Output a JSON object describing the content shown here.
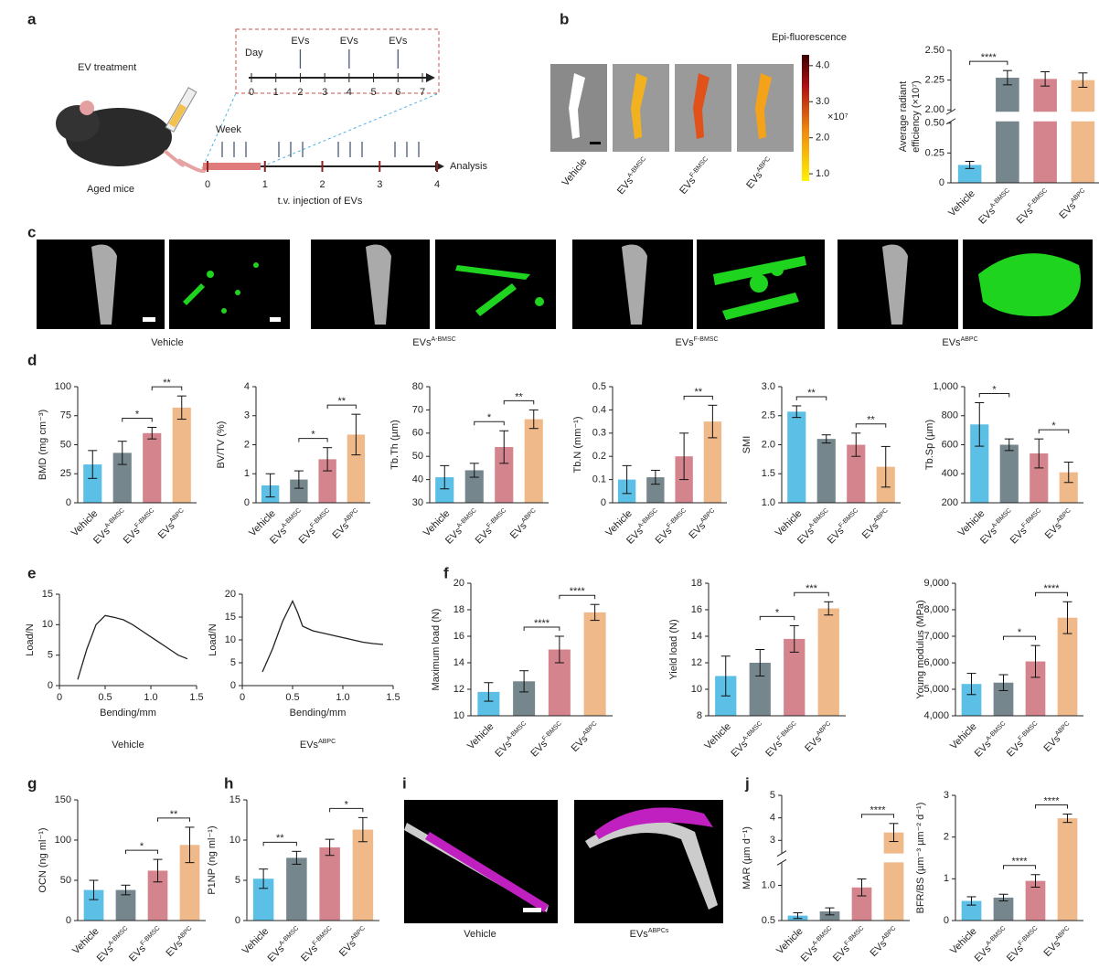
{
  "figure": {
    "panel_letters": [
      "a",
      "b",
      "c",
      "d",
      "e",
      "f",
      "g",
      "h",
      "i",
      "j"
    ],
    "a": {
      "title": "EV treatment",
      "mouse_label": "Aged mice",
      "day_label": "Day",
      "days": [
        0,
        1,
        2,
        3,
        4,
        5,
        6,
        7
      ],
      "ev_marks": [
        "EVs",
        "EVs",
        "EVs"
      ],
      "week_label": "Week",
      "weeks": [
        0,
        1,
        2,
        3,
        4
      ],
      "analysis": "Analysis",
      "injection": "t.v. injection of EVs"
    },
    "b": {
      "colorbar_title": "Epi-fluorescence",
      "colorbar_lim": [
        0.8,
        4.3
      ],
      "colorbar_ticks": [
        {
          "value": 1,
          "label": "1.0"
        },
        {
          "value": 2,
          "label": "2.0"
        },
        {
          "value": 3,
          "label": "3.0"
        },
        {
          "value": 4,
          "label": "4.0"
        }
      ],
      "colorbar_exponent": "×10⁷",
      "images": [
        {
          "label": "Vehicle"
        },
        {
          "label": "EVs",
          "sup": "A-BMSC"
        },
        {
          "label": "EVs",
          "sup": "F-BMSC"
        },
        {
          "label": "EVs",
          "sup": "ABPC"
        }
      ]
    },
    "c": {
      "labels": [
        {
          "label": "Vehicle"
        },
        {
          "label": "EVs",
          "sup": "A-BMSC"
        },
        {
          "label": "EVs",
          "sup": "F-BMSC"
        },
        {
          "label": "EVs",
          "sup": "ABPC"
        }
      ]
    },
    "i": {
      "labels": [
        {
          "label": "Vehicle"
        },
        {
          "label": "EVs",
          "sup": "ABPCs"
        }
      ]
    }
  },
  "chart_data": [
    {
      "type": "bar",
      "ylabel": [
        "Average radiant",
        "efficiency (×10⁷)"
      ],
      "categories": [
        "Vehicle",
        "EVs",
        "EVs",
        "EVs"
      ],
      "category_superscripts": [
        null,
        "A-BMSC",
        "F-BMSC",
        "ABPC"
      ],
      "values": [
        0.15,
        2.27,
        2.26,
        2.25
      ],
      "errors": [
        0.03,
        0.06,
        0.06,
        0.06
      ],
      "colors": [
        "#5bbfe6",
        "#75868c",
        "#d4848c",
        "#efb98a"
      ],
      "ylim": [
        0,
        2.5
      ],
      "ybreak": [
        0.5,
        2.0
      ],
      "yticks": [
        0,
        0.25,
        {
          "value": 0.5,
          "label": "0.50"
        },
        {
          "value": 2,
          "label": "2.00"
        },
        2.25,
        {
          "value": 2.5,
          "label": "2.50"
        }
      ],
      "significance": [
        {
          "pair": [
            0,
            1
          ],
          "label": "****"
        }
      ]
    },
    {
      "type": "bar",
      "ylabel": "BMD (mg cm⁻³)",
      "categories": [
        "Vehicle",
        "EVs",
        "EVs",
        "EVs"
      ],
      "category_superscripts": [
        null,
        "A-BMSC",
        "F-BMSC",
        "ABPC"
      ],
      "values": [
        33,
        43,
        60,
        82
      ],
      "errors": [
        12,
        10,
        5,
        10
      ],
      "colors": [
        "#5bbfe6",
        "#75868c",
        "#d4848c",
        "#efb98a"
      ],
      "ylim": [
        0,
        100
      ],
      "yticks": [
        0,
        25,
        50,
        75,
        100
      ],
      "significance": [
        {
          "pair": [
            1,
            2
          ],
          "label": "*"
        },
        {
          "pair": [
            2,
            3
          ],
          "label": "**"
        }
      ]
    },
    {
      "type": "bar",
      "ylabel": "BV/TV (%)",
      "categories": [
        "Vehicle",
        "EVs",
        "EVs",
        "EVs"
      ],
      "category_superscripts": [
        null,
        "A-BMSC",
        "F-BMSC",
        "ABPC"
      ],
      "values": [
        0.6,
        0.8,
        1.5,
        2.35
      ],
      "errors": [
        0.4,
        0.3,
        0.4,
        0.7
      ],
      "colors": [
        "#5bbfe6",
        "#75868c",
        "#d4848c",
        "#efb98a"
      ],
      "ylim": [
        0,
        4
      ],
      "yticks": [
        0,
        1,
        2,
        3,
        4
      ],
      "significance": [
        {
          "pair": [
            1,
            2
          ],
          "label": "*"
        },
        {
          "pair": [
            2,
            3
          ],
          "label": "**"
        }
      ]
    },
    {
      "type": "bar",
      "ylabel": "Tb.Th (µm)",
      "categories": [
        "Vehicle",
        "EVs",
        "EVs",
        "EVs"
      ],
      "category_superscripts": [
        null,
        "A-BMSC",
        "F-BMSC",
        "ABPC"
      ],
      "values": [
        41,
        44,
        54,
        66
      ],
      "errors": [
        5,
        3,
        7,
        4
      ],
      "colors": [
        "#5bbfe6",
        "#75868c",
        "#d4848c",
        "#efb98a"
      ],
      "ylim": [
        30,
        80
      ],
      "yticks": [
        30,
        40,
        50,
        60,
        70,
        80
      ],
      "significance": [
        {
          "pair": [
            1,
            2
          ],
          "label": "*"
        },
        {
          "pair": [
            2,
            3
          ],
          "label": "**"
        }
      ]
    },
    {
      "type": "bar",
      "ylabel": "Tb.N (mm⁻¹)",
      "categories": [
        "Vehicle",
        "EVs",
        "EVs",
        "EVs"
      ],
      "category_superscripts": [
        null,
        "A-BMSC",
        "F-BMSC",
        "ABPC"
      ],
      "values": [
        0.1,
        0.11,
        0.2,
        0.35
      ],
      "errors": [
        0.06,
        0.03,
        0.1,
        0.07
      ],
      "colors": [
        "#5bbfe6",
        "#75868c",
        "#d4848c",
        "#efb98a"
      ],
      "ylim": [
        0,
        0.5
      ],
      "yticks": [
        0,
        0.1,
        0.2,
        0.3,
        0.4,
        0.5
      ],
      "significance": [
        {
          "pair": [
            2,
            3
          ],
          "label": "**"
        }
      ]
    },
    {
      "type": "bar",
      "ylabel": "SMI",
      "categories": [
        "Vehicle",
        "EVs",
        "EVs",
        "EVs"
      ],
      "category_superscripts": [
        null,
        "A-BMSC",
        "F-BMSC",
        "ABPC"
      ],
      "values": [
        2.57,
        2.1,
        2.0,
        1.62
      ],
      "errors": [
        0.1,
        0.07,
        0.2,
        0.35
      ],
      "colors": [
        "#5bbfe6",
        "#75868c",
        "#d4848c",
        "#efb98a"
      ],
      "ylim": [
        1,
        3
      ],
      "yticks": [
        {
          "value": 1,
          "label": "1.0"
        },
        1.5,
        {
          "value": 2,
          "label": "2.0"
        },
        2.5,
        {
          "value": 3,
          "label": "3.0"
        }
      ],
      "significance": [
        {
          "pair": [
            0,
            1
          ],
          "label": "**"
        },
        {
          "pair": [
            2,
            3
          ],
          "label": "**"
        }
      ]
    },
    {
      "type": "bar",
      "ylabel": "Tb.Sp (µm)",
      "categories": [
        "Vehicle",
        "EVs",
        "EVs",
        "EVs"
      ],
      "category_superscripts": [
        null,
        "A-BMSC",
        "F-BMSC",
        "ABPC"
      ],
      "values": [
        740,
        600,
        540,
        410
      ],
      "errors": [
        150,
        40,
        100,
        70
      ],
      "colors": [
        "#5bbfe6",
        "#75868c",
        "#d4848c",
        "#efb98a"
      ],
      "ylim": [
        200,
        1000
      ],
      "yticks": [
        200,
        400,
        600,
        800,
        {
          "value": 1000,
          "label": "1,000"
        }
      ],
      "significance": [
        {
          "pair": [
            0,
            1
          ],
          "label": "*"
        },
        {
          "pair": [
            2,
            3
          ],
          "label": "*"
        }
      ]
    },
    {
      "type": "line",
      "xlabel": "Bending/mm",
      "ylabel": "Load/N",
      "caption": "Vehicle",
      "color": "#222",
      "x": [
        0.2,
        0.3,
        0.4,
        0.5,
        0.6,
        0.7,
        0.8,
        0.9,
        1.0,
        1.1,
        1.2,
        1.3,
        1.4
      ],
      "values": [
        1,
        6,
        10,
        11.5,
        11.2,
        10.8,
        10,
        9,
        8,
        7,
        6,
        5,
        4.4
      ],
      "xlim": [
        0,
        1.5
      ],
      "xticks": [
        0,
        0.5,
        {
          "value": 1,
          "label": "1.0"
        },
        1.5
      ],
      "ylim": [
        0,
        15
      ],
      "yticks": [
        0,
        5,
        10,
        15
      ]
    },
    {
      "type": "line",
      "xlabel": "Bending/mm",
      "ylabel": "Load/N",
      "caption": "EVs",
      "caption_superscript": "ABPC",
      "color": "#222",
      "x": [
        0.2,
        0.3,
        0.4,
        0.5,
        0.55,
        0.6,
        0.7,
        0.8,
        0.9,
        1.0,
        1.1,
        1.2,
        1.3,
        1.4
      ],
      "values": [
        3,
        8,
        14,
        18.5,
        16,
        13,
        12,
        11.5,
        11,
        10.5,
        10,
        9.5,
        9.2,
        9
      ],
      "xlim": [
        0,
        1.5
      ],
      "xticks": [
        0,
        0.5,
        {
          "value": 1,
          "label": "1.0"
        },
        1.5
      ],
      "ylim": [
        0,
        20
      ],
      "yticks": [
        0,
        5,
        10,
        15,
        20
      ]
    },
    {
      "type": "bar",
      "ylabel": "Maximum load (N)",
      "categories": [
        "Vehicle",
        "EVs",
        "EVs",
        "EVs"
      ],
      "category_superscripts": [
        null,
        "A-BMSC",
        "F-BMSC",
        "ABPC"
      ],
      "values": [
        11.8,
        12.6,
        15,
        17.8
      ],
      "errors": [
        0.7,
        0.8,
        1,
        0.6
      ],
      "colors": [
        "#5bbfe6",
        "#75868c",
        "#d4848c",
        "#efb98a"
      ],
      "ylim": [
        10,
        20
      ],
      "yticks": [
        10,
        12,
        14,
        16,
        18,
        20
      ],
      "significance": [
        {
          "pair": [
            1,
            2
          ],
          "label": "****"
        },
        {
          "pair": [
            2,
            3
          ],
          "label": "****"
        }
      ]
    },
    {
      "type": "bar",
      "ylabel": "Yield load  (N)",
      "categories": [
        "Vehicle",
        "EVs",
        "EVs",
        "EVs"
      ],
      "category_superscripts": [
        null,
        "A-BMSC",
        "F-BMSC",
        "ABPC"
      ],
      "values": [
        11,
        12,
        13.8,
        16.1
      ],
      "errors": [
        1.5,
        1,
        1,
        0.5
      ],
      "colors": [
        "#5bbfe6",
        "#75868c",
        "#d4848c",
        "#efb98a"
      ],
      "ylim": [
        8,
        18
      ],
      "yticks": [
        8,
        10,
        12,
        14,
        16,
        18
      ],
      "significance": [
        {
          "pair": [
            1,
            2
          ],
          "label": "*"
        },
        {
          "pair": [
            2,
            3
          ],
          "label": "***"
        }
      ]
    },
    {
      "type": "bar",
      "ylabel": "Young modulus (MPa)",
      "categories": [
        "Vehicle",
        "EVs",
        "EVs",
        "EVs"
      ],
      "category_superscripts": [
        null,
        "A-BMSC",
        "F-BMSC",
        "ABPC"
      ],
      "values": [
        5200,
        5250,
        6050,
        7700
      ],
      "errors": [
        400,
        300,
        600,
        600
      ],
      "colors": [
        "#5bbfe6",
        "#75868c",
        "#d4848c",
        "#efb98a"
      ],
      "ylim": [
        4000,
        9000
      ],
      "yticks": [
        {
          "value": 4000,
          "label": "4,000"
        },
        {
          "value": 5000,
          "label": "5,000"
        },
        {
          "value": 6000,
          "label": "6,000"
        },
        {
          "value": 7000,
          "label": "7,000"
        },
        {
          "value": 8000,
          "label": "8,000"
        },
        {
          "value": 9000,
          "label": "9,000"
        }
      ],
      "significance": [
        {
          "pair": [
            1,
            2
          ],
          "label": "*"
        },
        {
          "pair": [
            2,
            3
          ],
          "label": "****"
        }
      ]
    },
    {
      "type": "bar",
      "ylabel": "OCN (ng ml⁻¹)",
      "categories": [
        "Vehicle",
        "EVs",
        "EVs",
        "EVs"
      ],
      "category_superscripts": [
        null,
        "A-BMSC",
        "F-BMSC",
        "ABPC"
      ],
      "values": [
        38,
        38,
        62,
        94
      ],
      "errors": [
        12,
        6,
        14,
        22
      ],
      "colors": [
        "#5bbfe6",
        "#75868c",
        "#d4848c",
        "#efb98a"
      ],
      "ylim": [
        0,
        150
      ],
      "yticks": [
        0,
        50,
        100,
        150
      ],
      "significance": [
        {
          "pair": [
            1,
            2
          ],
          "label": "*"
        },
        {
          "pair": [
            2,
            3
          ],
          "label": "**"
        }
      ]
    },
    {
      "type": "bar",
      "ylabel": "P1NP (ng ml⁻¹)",
      "categories": [
        "Vehicle",
        "EVs",
        "EVs",
        "EVs"
      ],
      "category_superscripts": [
        null,
        "A-BMSC",
        "F-BMSC",
        "ABPC"
      ],
      "values": [
        5.2,
        7.8,
        9.1,
        11.3
      ],
      "errors": [
        1.2,
        0.8,
        1,
        1.5
      ],
      "colors": [
        "#5bbfe6",
        "#75868c",
        "#d4848c",
        "#efb98a"
      ],
      "ylim": [
        0,
        15
      ],
      "yticks": [
        0,
        5,
        10,
        15
      ],
      "significance": [
        {
          "pair": [
            0,
            1
          ],
          "label": "**"
        },
        {
          "pair": [
            2,
            3
          ],
          "label": "*"
        }
      ]
    },
    {
      "type": "bar",
      "ylabel": "MAR (µm d⁻¹)",
      "categories": [
        "Vehicle",
        "EVs",
        "EVs",
        "EVs"
      ],
      "category_superscripts": [
        null,
        "A-BMSC",
        "F-BMSC",
        "ABPC"
      ],
      "values": [
        0.57,
        0.63,
        0.97,
        3.35
      ],
      "errors": [
        0.04,
        0.05,
        0.12,
        0.4
      ],
      "colors": [
        "#5bbfe6",
        "#75868c",
        "#d4848c",
        "#efb98a"
      ],
      "ylim": [
        0.5,
        5
      ],
      "ybreak": [
        1.3,
        2.5
      ],
      "yticks": [
        0.5,
        {
          "value": 1,
          "label": "1.0"
        },
        3,
        4,
        5
      ],
      "significance": [
        {
          "pair": [
            2,
            3
          ],
          "label": "****"
        }
      ]
    },
    {
      "type": "bar",
      "ylabel": "BFR/BS (µm⁻³ µm⁻² d⁻¹)",
      "categories": [
        "Vehicle",
        "EVs",
        "EVs",
        "EVs"
      ],
      "category_superscripts": [
        null,
        "A-BMSC",
        "F-BMSC",
        "ABPC"
      ],
      "values": [
        0.47,
        0.55,
        0.95,
        2.45
      ],
      "errors": [
        0.1,
        0.08,
        0.15,
        0.1
      ],
      "colors": [
        "#5bbfe6",
        "#75868c",
        "#d4848c",
        "#efb98a"
      ],
      "ylim": [
        0,
        3
      ],
      "yticks": [
        0,
        1,
        2,
        3
      ],
      "significance": [
        {
          "pair": [
            1,
            2
          ],
          "label": "****"
        },
        {
          "pair": [
            2,
            3
          ],
          "label": "****"
        }
      ]
    }
  ]
}
